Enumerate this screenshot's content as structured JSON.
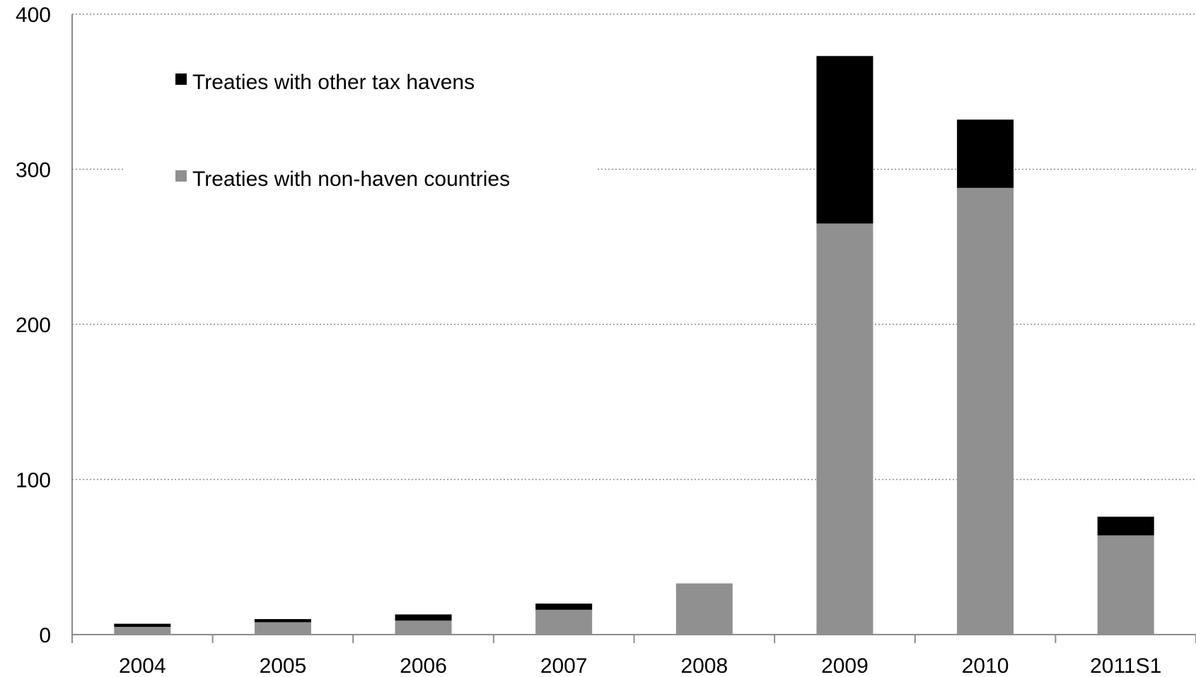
{
  "chart_data": {
    "type": "bar",
    "stacked": true,
    "title": "",
    "xlabel": "",
    "ylabel": "",
    "categories": [
      "2004",
      "2005",
      "2006",
      "2007",
      "2008",
      "2009",
      "2010",
      "2011S1"
    ],
    "series": [
      {
        "name": "Treaties with non-haven countries",
        "color": "#909090",
        "values": [
          5,
          8,
          9,
          16,
          33,
          265,
          288,
          64
        ]
      },
      {
        "name": "Treaties with other tax havens",
        "color": "#000000",
        "values": [
          2,
          2,
          4,
          4,
          0,
          108,
          44,
          12
        ]
      }
    ],
    "ylim": [
      0,
      400
    ],
    "yticks": [
      "0",
      "100",
      "200",
      "300",
      "400"
    ],
    "grid": true,
    "legend_position": "top-left",
    "legend_order": [
      1,
      0
    ]
  }
}
